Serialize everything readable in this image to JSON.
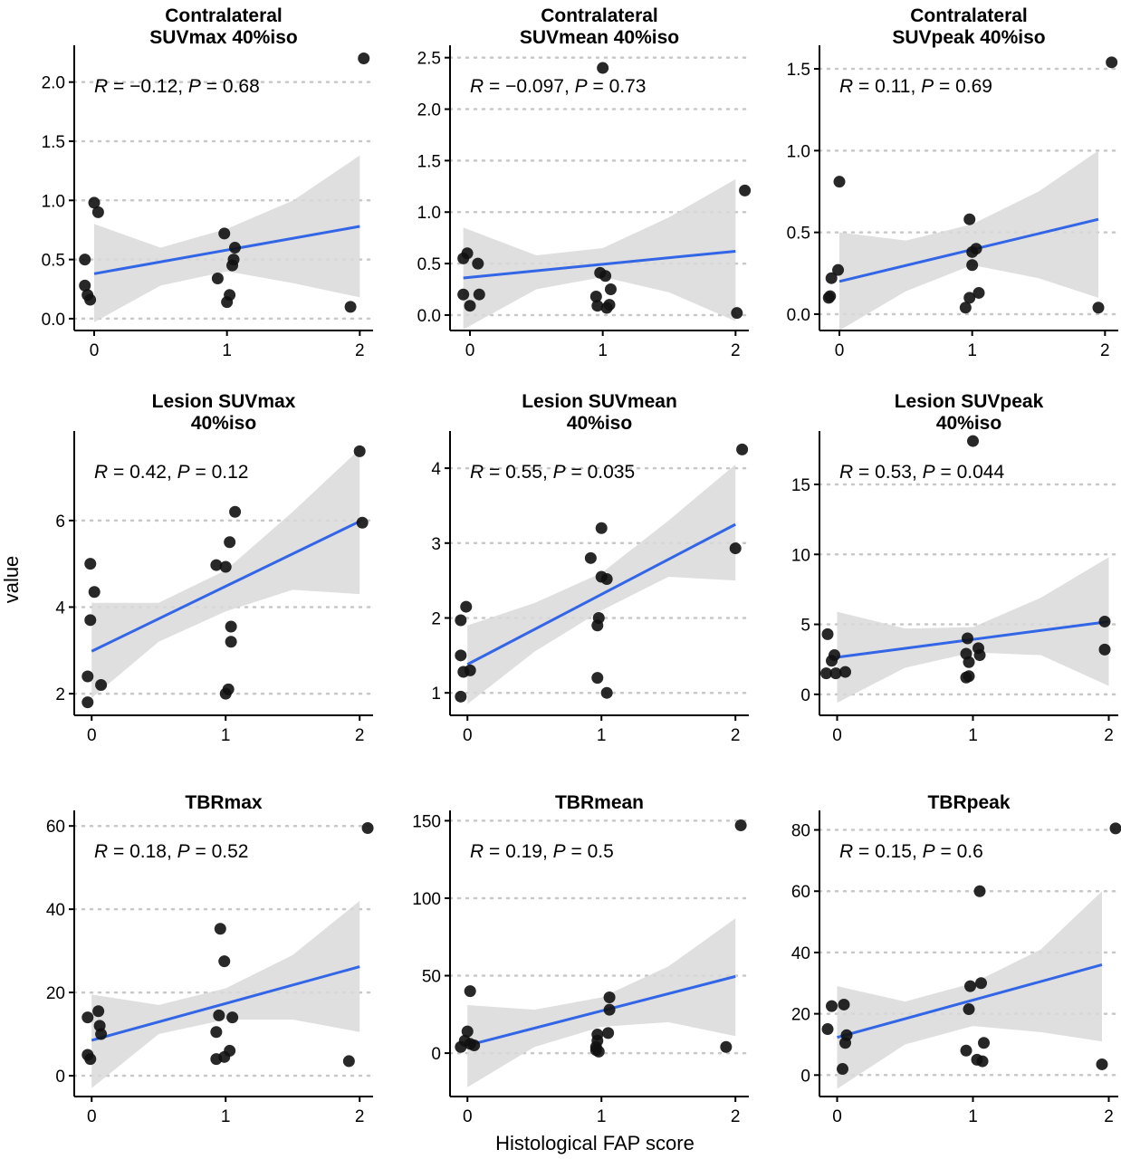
{
  "figure": {
    "ylabel": "value",
    "xlabel": "Histological FAP score"
  },
  "colors": {
    "points": "#111111",
    "fit_line": "#3366e6",
    "ci_band": "#d9d9d9",
    "gridline": "#c8c8c8",
    "axis": "#000000"
  },
  "chart_data": [
    {
      "type": "scatter",
      "title_lines": [
        "Contralateral",
        "SUVmax 40%iso"
      ],
      "annotation": {
        "r": "0.12",
        "r_neg": true,
        "p": "0.68"
      },
      "xlim": [
        -0.15,
        2.1
      ],
      "ylim": [
        -0.1,
        2.25
      ],
      "xticks": [
        0,
        1,
        2
      ],
      "yticks": [
        0,
        0.5,
        1,
        1.5,
        2
      ],
      "ytick_labels": [
        "0.0",
        "0.5",
        "1.0",
        "1.5",
        "2.0"
      ],
      "fit": {
        "x0": 0,
        "y0": 0.38,
        "x1": 2,
        "y1": 0.78
      },
      "ci": {
        "x": [
          0,
          0.5,
          1,
          1.5,
          2
        ],
        "lower": [
          -0.03,
          0.28,
          0.4,
          0.3,
          0.18
        ],
        "upper": [
          0.8,
          0.6,
          0.76,
          1.0,
          1.38
        ]
      },
      "points": [
        [
          -0.07,
          0.5
        ],
        [
          -0.07,
          0.28
        ],
        [
          -0.05,
          0.2
        ],
        [
          -0.03,
          0.16
        ],
        [
          0,
          0.98
        ],
        [
          0.03,
          0.9
        ],
        [
          0.93,
          0.34
        ],
        [
          0.98,
          0.72
        ],
        [
          1.0,
          0.14
        ],
        [
          1.02,
          0.2
        ],
        [
          1.04,
          0.45
        ],
        [
          1.05,
          0.5
        ],
        [
          1.06,
          0.6
        ],
        [
          1.93,
          0.1
        ],
        [
          2.03,
          2.2
        ]
      ]
    },
    {
      "type": "scatter",
      "title_lines": [
        "Contralateral",
        "SUVmean 40%iso"
      ],
      "annotation": {
        "r": "0.097",
        "r_neg": true,
        "p": "0.73"
      },
      "xlim": [
        -0.15,
        2.1
      ],
      "ylim": [
        -0.15,
        2.55
      ],
      "xticks": [
        0,
        1,
        2
      ],
      "yticks": [
        0,
        0.5,
        1,
        1.5,
        2,
        2.5
      ],
      "ytick_labels": [
        "0.0",
        "0.5",
        "1.0",
        "1.5",
        "2.0",
        "2.5"
      ],
      "fit": {
        "x0": -0.05,
        "y0": 0.36,
        "x1": 2,
        "y1": 0.62
      },
      "ci": {
        "x": [
          -0.05,
          0.5,
          1,
          1.5,
          2
        ],
        "lower": [
          -0.14,
          0.25,
          0.37,
          0.22,
          -0.06
        ],
        "upper": [
          0.85,
          0.58,
          0.65,
          0.95,
          1.32
        ]
      },
      "points": [
        [
          -0.05,
          0.55
        ],
        [
          -0.05,
          0.2
        ],
        [
          -0.02,
          0.6
        ],
        [
          0,
          0.09
        ],
        [
          0.06,
          0.5
        ],
        [
          0.07,
          0.2
        ],
        [
          0.95,
          0.18
        ],
        [
          0.96,
          0.09
        ],
        [
          0.98,
          0.41
        ],
        [
          1.02,
          0.38
        ],
        [
          1.03,
          0.07
        ],
        [
          1.05,
          0.1
        ],
        [
          1.06,
          0.25
        ],
        [
          1.0,
          2.4
        ],
        [
          2.01,
          0.02
        ],
        [
          2.07,
          1.21
        ]
      ]
    },
    {
      "type": "scatter",
      "title_lines": [
        "Contralateral",
        "SUVpeak 40%iso"
      ],
      "annotation": {
        "r": "0.11",
        "r_neg": false,
        "p": "0.69"
      },
      "xlim": [
        -0.15,
        2.1
      ],
      "ylim": [
        -0.1,
        1.6
      ],
      "xticks": [
        0,
        1,
        2
      ],
      "yticks": [
        0,
        0.5,
        1,
        1.5
      ],
      "ytick_labels": [
        "0.0",
        "0.5",
        "1.0",
        "1.5"
      ],
      "fit": {
        "x0": 0,
        "y0": 0.2,
        "x1": 1.95,
        "y1": 0.58
      },
      "ci": {
        "x": [
          0,
          0.5,
          1,
          1.5,
          1.95
        ],
        "lower": [
          -0.1,
          0.14,
          0.3,
          0.22,
          0.1
        ],
        "upper": [
          0.5,
          0.45,
          0.55,
          0.75,
          1.0
        ]
      },
      "points": [
        [
          -0.08,
          0.1
        ],
        [
          -0.07,
          0.11
        ],
        [
          -0.06,
          0.22
        ],
        [
          -0.01,
          0.27
        ],
        [
          0,
          0.81
        ],
        [
          0.95,
          0.04
        ],
        [
          0.98,
          0.1
        ],
        [
          0.98,
          0.58
        ],
        [
          1.0,
          0.3
        ],
        [
          1.0,
          0.38
        ],
        [
          1.03,
          0.4
        ],
        [
          1.05,
          0.13
        ],
        [
          1.95,
          0.04
        ],
        [
          2.05,
          1.54
        ]
      ]
    },
    {
      "type": "scatter",
      "title_lines": [
        "Lesion SUVmax",
        "40%iso"
      ],
      "annotation": {
        "r": "0.42",
        "r_neg": false,
        "p": "0.12"
      },
      "xlim": [
        -0.13,
        2.1
      ],
      "ylim": [
        1.5,
        7.9
      ],
      "xticks": [
        0,
        1,
        2
      ],
      "yticks": [
        2,
        4,
        6
      ],
      "ytick_labels": [
        "2",
        "4",
        "6"
      ],
      "fit": {
        "x0": 0,
        "y0": 2.98,
        "x1": 2,
        "y1": 5.98
      },
      "ci": {
        "x": [
          0,
          0.5,
          1,
          1.5,
          2
        ],
        "lower": [
          1.9,
          3.2,
          3.9,
          4.4,
          4.3
        ],
        "upper": [
          4.1,
          4.1,
          4.85,
          6.2,
          7.65
        ]
      },
      "points": [
        [
          -0.03,
          1.8
        ],
        [
          -0.03,
          2.4
        ],
        [
          -0.01,
          5.0
        ],
        [
          -0.01,
          3.7
        ],
        [
          0.02,
          4.35
        ],
        [
          0.07,
          2.2
        ],
        [
          0.93,
          4.97
        ],
        [
          1.0,
          4.93
        ],
        [
          1.0,
          2.0
        ],
        [
          1.02,
          2.1
        ],
        [
          1.03,
          5.5
        ],
        [
          1.04,
          3.55
        ],
        [
          1.04,
          3.2
        ],
        [
          1.07,
          6.2
        ],
        [
          2.0,
          7.6
        ],
        [
          2.02,
          5.95
        ]
      ]
    },
    {
      "type": "scatter",
      "title_lines": [
        "Lesion SUVmean",
        "40%iso"
      ],
      "annotation": {
        "r": "0.55",
        "r_neg": false,
        "p": "0.035"
      },
      "xlim": [
        -0.13,
        2.1
      ],
      "ylim": [
        0.7,
        4.4
      ],
      "xticks": [
        0,
        1,
        2
      ],
      "yticks": [
        1,
        2,
        3,
        4
      ],
      "ytick_labels": [
        "1",
        "2",
        "3",
        "4"
      ],
      "fit": {
        "x0": 0,
        "y0": 1.38,
        "x1": 2,
        "y1": 3.25
      },
      "ci": {
        "x": [
          0,
          0.5,
          1,
          1.5,
          2
        ],
        "lower": [
          0.85,
          1.55,
          2.1,
          2.55,
          2.5
        ],
        "upper": [
          1.9,
          2.2,
          2.6,
          3.3,
          4.05
        ]
      },
      "points": [
        [
          -0.05,
          0.95
        ],
        [
          -0.05,
          1.5
        ],
        [
          -0.05,
          1.97
        ],
        [
          -0.03,
          1.28
        ],
        [
          -0.01,
          2.15
        ],
        [
          0.02,
          1.3
        ],
        [
          0.92,
          2.8
        ],
        [
          0.97,
          1.2
        ],
        [
          0.97,
          1.9
        ],
        [
          0.98,
          2.0
        ],
        [
          1.0,
          2.55
        ],
        [
          1.0,
          3.2
        ],
        [
          1.04,
          1.0
        ],
        [
          1.04,
          2.52
        ],
        [
          2.0,
          2.93
        ],
        [
          2.05,
          4.25
        ]
      ]
    },
    {
      "type": "scatter",
      "title_lines": [
        "Lesion SUVpeak",
        "40%iso"
      ],
      "annotation": {
        "r": "0.53",
        "r_neg": false,
        "p": "0.044"
      },
      "xlim": [
        -0.13,
        2.07
      ],
      "ylim": [
        -1.5,
        18.3
      ],
      "xticks": [
        0,
        1,
        2
      ],
      "yticks": [
        0,
        5,
        10,
        15
      ],
      "ytick_labels": [
        "0",
        "5",
        "10",
        "15"
      ],
      "fit": {
        "x0": 0,
        "y0": 2.65,
        "x1": 2,
        "y1": 5.2
      },
      "ci": {
        "x": [
          0,
          0.5,
          1,
          1.5,
          2
        ],
        "lower": [
          -0.6,
          1.9,
          3.0,
          2.8,
          0.6
        ],
        "upper": [
          5.9,
          4.7,
          4.8,
          6.9,
          9.8
        ]
      },
      "points": [
        [
          -0.08,
          1.5
        ],
        [
          -0.07,
          4.3
        ],
        [
          -0.04,
          2.4
        ],
        [
          -0.02,
          2.8
        ],
        [
          -0.01,
          1.5
        ],
        [
          0.06,
          1.6
        ],
        [
          0.95,
          1.2
        ],
        [
          0.95,
          2.9
        ],
        [
          0.96,
          4.0
        ],
        [
          0.97,
          1.3
        ],
        [
          0.97,
          2.3
        ],
        [
          1.0,
          18.1
        ],
        [
          1.04,
          3.3
        ],
        [
          1.05,
          2.8
        ],
        [
          1.97,
          5.2
        ],
        [
          1.97,
          3.2
        ]
      ]
    },
    {
      "type": "scatter",
      "title_lines": [
        "TBRmax"
      ],
      "annotation": {
        "r": "0.18",
        "r_neg": false,
        "p": "0.52"
      },
      "xlim": [
        -0.13,
        2.1
      ],
      "ylim": [
        -5,
        62
      ],
      "xticks": [
        0,
        1,
        2
      ],
      "yticks": [
        0,
        20,
        40,
        60
      ],
      "ytick_labels": [
        "0",
        "20",
        "40",
        "60"
      ],
      "fit": {
        "x0": 0,
        "y0": 8.5,
        "x1": 2,
        "y1": 26.2
      },
      "ci": {
        "x": [
          0,
          0.5,
          1,
          1.5,
          2
        ],
        "lower": [
          -3,
          10,
          13.5,
          13.5,
          10.5
        ],
        "upper": [
          19.5,
          17,
          21,
          29,
          42
        ]
      },
      "points": [
        [
          -0.03,
          5
        ],
        [
          -0.03,
          14
        ],
        [
          -0.01,
          4
        ],
        [
          0.05,
          15.5
        ],
        [
          0.06,
          12
        ],
        [
          0.07,
          10
        ],
        [
          0.93,
          10.5
        ],
        [
          0.93,
          4
        ],
        [
          0.95,
          14.5
        ],
        [
          0.96,
          35.3
        ],
        [
          0.99,
          27.5
        ],
        [
          0.99,
          4.5
        ],
        [
          1.03,
          6
        ],
        [
          1.05,
          14
        ],
        [
          1.92,
          3.5
        ],
        [
          2.06,
          59.5
        ]
      ]
    },
    {
      "type": "scatter",
      "title_lines": [
        "TBRmean"
      ],
      "annotation": {
        "r": "0.19",
        "r_neg": false,
        "p": "0.5"
      },
      "xlim": [
        -0.13,
        2.1
      ],
      "ylim": [
        -28,
        152
      ],
      "xticks": [
        0,
        1,
        2
      ],
      "yticks": [
        0,
        50,
        100,
        150
      ],
      "ytick_labels": [
        "0",
        "50",
        "100",
        "150"
      ],
      "fit": {
        "x0": 0,
        "y0": 5,
        "x1": 2,
        "y1": 49.5
      },
      "ci": {
        "x": [
          0,
          0.5,
          1,
          1.5,
          2
        ],
        "lower": [
          -22,
          4,
          17,
          20,
          11
        ],
        "upper": [
          31,
          28,
          36,
          56,
          87
        ]
      },
      "points": [
        [
          -0.05,
          4
        ],
        [
          -0.02,
          8
        ],
        [
          0.0,
          14
        ],
        [
          0.02,
          6
        ],
        [
          0.02,
          40
        ],
        [
          0.05,
          5
        ],
        [
          0.96,
          2
        ],
        [
          0.96,
          4
        ],
        [
          0.97,
          8
        ],
        [
          0.97,
          12
        ],
        [
          0.98,
          1
        ],
        [
          1.05,
          13
        ],
        [
          1.06,
          28
        ],
        [
          1.06,
          36
        ],
        [
          1.93,
          4
        ],
        [
          2.04,
          147
        ]
      ]
    },
    {
      "type": "scatter",
      "title_lines": [
        "TBRpeak"
      ],
      "annotation": {
        "r": "0.15",
        "r_neg": false,
        "p": "0.6"
      },
      "xlim": [
        -0.13,
        2.07
      ],
      "ylim": [
        -7,
        84
      ],
      "xticks": [
        0,
        1,
        2
      ],
      "yticks": [
        0,
        20,
        40,
        60,
        80
      ],
      "ytick_labels": [
        "0",
        "20",
        "40",
        "60",
        "80"
      ],
      "fit": {
        "x0": 0,
        "y0": 12.3,
        "x1": 1.95,
        "y1": 36
      },
      "ci": {
        "x": [
          0,
          0.5,
          1,
          1.5,
          1.95
        ],
        "lower": [
          -4.5,
          10,
          16,
          14,
          11
        ],
        "upper": [
          29,
          24,
          30,
          41,
          60
        ]
      },
      "points": [
        [
          -0.07,
          15
        ],
        [
          -0.04,
          22.5
        ],
        [
          0.04,
          2
        ],
        [
          0.05,
          23
        ],
        [
          0.06,
          10.5
        ],
        [
          0.07,
          13
        ],
        [
          0.95,
          8
        ],
        [
          0.97,
          21.5
        ],
        [
          0.98,
          29
        ],
        [
          1.03,
          5
        ],
        [
          1.05,
          60
        ],
        [
          1.06,
          30
        ],
        [
          1.07,
          4.5
        ],
        [
          1.08,
          10.5
        ],
        [
          1.95,
          3.5
        ],
        [
          2.05,
          80.5
        ]
      ]
    }
  ]
}
